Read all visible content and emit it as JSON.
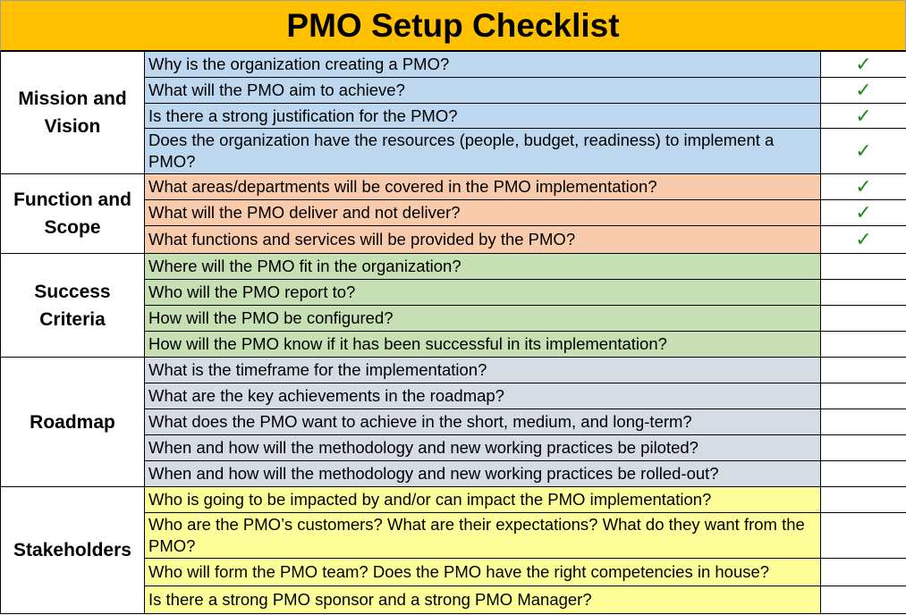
{
  "title": "PMO Setup Checklist",
  "colors": {
    "title": "#FFC000",
    "check": "#1e8a1e"
  },
  "sections": [
    {
      "category": "Mission and Vision",
      "color": "#BDD7EE",
      "items": [
        {
          "q": "Why is the organization creating a PMO?",
          "checked": true,
          "h": 29
        },
        {
          "q": "What will the PMO aim to achieve?",
          "checked": true,
          "h": 29
        },
        {
          "q": "Is there a strong justification for the PMO?",
          "checked": true,
          "h": 28
        },
        {
          "q": "Does the organization have the resources (people, budget, readiness) to implement a PMO?",
          "checked": true,
          "h": 51
        }
      ]
    },
    {
      "category": "Function and Scope",
      "color": "#F8CBAD",
      "items": [
        {
          "q": "What areas/departments will be covered in the PMO implementation?",
          "checked": true,
          "h": 29
        },
        {
          "q": "What will the PMO deliver and not deliver?",
          "checked": true,
          "h": 29
        },
        {
          "q": "What functions and services will be provided by the PMO?",
          "checked": true,
          "h": 31
        }
      ]
    },
    {
      "category": "Success Criteria",
      "color": "#C6E0B4",
      "items": [
        {
          "q": "Where will the PMO fit in the organization?",
          "checked": false,
          "h": 29
        },
        {
          "q": "Who will the PMO report to?",
          "checked": false,
          "h": 29
        },
        {
          "q": "How will the PMO be configured?",
          "checked": false,
          "h": 29
        },
        {
          "q": "How will the PMO know if it has been successful in its implementation?",
          "checked": false,
          "h": 29
        }
      ]
    },
    {
      "category": "Roadmap",
      "color": "#D6DCE4",
      "items": [
        {
          "q": "What is the timeframe for the implementation?",
          "checked": false,
          "h": 29
        },
        {
          "q": "What are the key achievements in the roadmap?",
          "checked": false,
          "h": 29
        },
        {
          "q": "What does the PMO want to achieve in the short, medium, and long-term?",
          "checked": false,
          "h": 29
        },
        {
          "q": "When and how will the methodology and new working practices be piloted?",
          "checked": false,
          "h": 29
        },
        {
          "q": "When and how will the methodology and new working practices be rolled-out?",
          "checked": false,
          "h": 29
        }
      ]
    },
    {
      "category": "Stakeholders",
      "color": "#FFFF99",
      "items": [
        {
          "q": "Who is going to be impacted by and/or can impact the PMO implementation?",
          "checked": false,
          "h": 29
        },
        {
          "q": "Who are the PMO’s customers? What are their expectations? What do they want from the PMO?",
          "checked": false,
          "h": 51
        },
        {
          "q": "Who will form the PMO team? Does the PMO have the right competencies in house?",
          "checked": false,
          "h": 31
        },
        {
          "q": "Is there a strong PMO sponsor and a strong PMO Manager?",
          "checked": false,
          "h": 31
        }
      ]
    }
  ]
}
